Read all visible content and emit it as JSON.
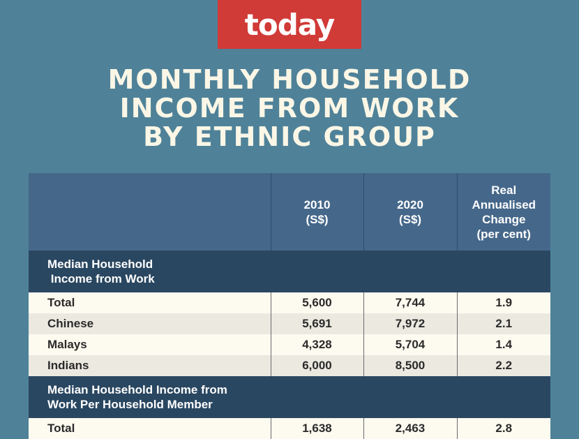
{
  "logo": "today",
  "title": [
    "MONTHLY HOUSEHOLD",
    "INCOME FROM WORK",
    "BY ETHNIC GROUP"
  ],
  "colors": {
    "background": "#4f8299",
    "logo": "#d03a37",
    "header": "#45678a",
    "section": "#2a4761",
    "row_light": "#fdfaef",
    "row_dark": "#ebe9e0"
  },
  "chart_data": {
    "type": "table",
    "columns": [
      "",
      "2010 (S$)",
      "2020 (S$)",
      "Real Annualised Change (per cent)"
    ],
    "header": {
      "c1": [
        "2010",
        "(S$)"
      ],
      "c2": [
        "2020",
        "(S$)"
      ],
      "c3": [
        "Real",
        "Annualised",
        "Change",
        "(per cent)"
      ]
    },
    "sections": [
      {
        "label": [
          "Median Household",
          " Income from Work"
        ],
        "rows": [
          [
            "Total",
            "5,600",
            "7,744",
            "1.9"
          ],
          [
            "Chinese",
            "5,691",
            "7,972",
            "2.1"
          ],
          [
            "Malays",
            "4,328",
            "5,704",
            "1.4"
          ],
          [
            "Indians",
            "6,000",
            "8,500",
            "2.2"
          ]
        ]
      },
      {
        "label": [
          "Median Household Income from",
          "Work Per Household Member"
        ],
        "rows": [
          [
            "Total",
            "1,638",
            "2,463",
            "2.8"
          ]
        ]
      }
    ]
  }
}
